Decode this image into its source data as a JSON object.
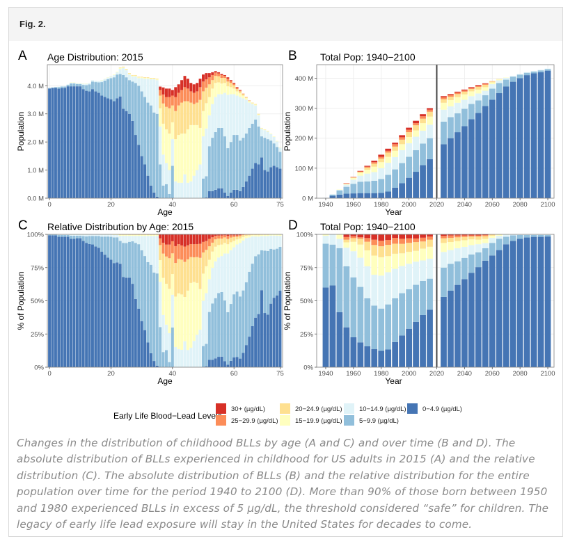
{
  "figure": {
    "label": "Fig. 2.",
    "caption": "Changes in the distribution of childhood BLLs by age (A and C) and over time (B and D). The absolute distribution of BLLs experienced in childhood for US adults in 2015 (A) and the relative distribution (C). The absolute distribution of BLLs (B) and the relative distribution for the entire population over time for the period 1940 to 2100 (D). More than 90% of those born between 1950 and 1980 experienced BLLs in excess of 5 µg/dL, the threshold considered “safe” for children. The legacy of early life lead exposure will stay in the United States for decades to come."
  },
  "legend": {
    "title": "Early Life Blood−Lead Levels",
    "items": [
      {
        "label": "30+ (µg/dL)",
        "color": "#d73027"
      },
      {
        "label": "25−29.9 (µg/dL)",
        "color": "#fc8d59"
      },
      {
        "label": "20−24.9 (µg/dL)",
        "color": "#fee090"
      },
      {
        "label": "15−19.9 (µg/dL)",
        "color": "#ffffbf"
      },
      {
        "label": "10−14.9 (µg/dL)",
        "color": "#e0f3f8"
      },
      {
        "label": "5−9.9 (µg/dL)",
        "color": "#91bfdb"
      },
      {
        "label": "0−4.9 (µg/dL)",
        "color": "#4575b4"
      }
    ]
  },
  "chart_data": [
    {
      "panel": "A",
      "type": "bar",
      "stacked": true,
      "title": "Age Distribution: 2015",
      "xlabel": "Age",
      "ylabel": "Population",
      "xticks": [
        "0",
        "20",
        "40",
        "60",
        "75"
      ],
      "yticks": [
        "0.0 M",
        "1.0 M",
        "2.0 M",
        "3.0 M",
        "4.0 M"
      ],
      "ylim": [
        0,
        4.75
      ],
      "unit": "millions",
      "grid": true,
      "series_order": [
        "0−4.9 (µg/dL)",
        "5−9.9 (µg/dL)",
        "10−14.9 (µg/dL)",
        "15−19.9 (µg/dL)",
        "20−24.9 (µg/dL)",
        "25−29.9 (µg/dL)",
        "30+ (µg/dL)"
      ],
      "x": [
        0,
        1,
        2,
        3,
        4,
        5,
        6,
        7,
        8,
        9,
        10,
        11,
        12,
        13,
        14,
        15,
        16,
        17,
        18,
        19,
        20,
        21,
        22,
        23,
        24,
        25,
        26,
        27,
        28,
        29,
        30,
        31,
        32,
        33,
        34,
        35,
        36,
        37,
        38,
        39,
        40,
        41,
        42,
        43,
        44,
        45,
        46,
        47,
        48,
        49,
        50,
        51,
        52,
        53,
        54,
        55,
        56,
        57,
        58,
        59,
        60,
        61,
        62,
        63,
        64,
        65,
        66,
        67,
        68,
        69,
        70,
        71,
        72,
        73,
        74,
        75
      ],
      "values": [
        [
          3.9,
          0.02,
          0.01,
          0,
          0,
          0,
          0
        ],
        [
          3.92,
          0.02,
          0.01,
          0,
          0,
          0,
          0
        ],
        [
          3.93,
          0.02,
          0.01,
          0,
          0,
          0,
          0
        ],
        [
          3.9,
          0.05,
          0.02,
          0,
          0,
          0,
          0
        ],
        [
          3.92,
          0.05,
          0.02,
          0,
          0,
          0,
          0
        ],
        [
          3.92,
          0.05,
          0.02,
          0,
          0,
          0,
          0
        ],
        [
          3.98,
          0.05,
          0.02,
          0,
          0,
          0,
          0
        ],
        [
          3.98,
          0.1,
          0.03,
          0.01,
          0,
          0,
          0
        ],
        [
          3.98,
          0.1,
          0.03,
          0.01,
          0,
          0,
          0
        ],
        [
          3.98,
          0.08,
          0.03,
          0.01,
          0,
          0,
          0
        ],
        [
          3.98,
          0.08,
          0.03,
          0.01,
          0,
          0,
          0
        ],
        [
          3.88,
          0.15,
          0.04,
          0.01,
          0,
          0,
          0
        ],
        [
          3.82,
          0.2,
          0.05,
          0.01,
          0,
          0,
          0
        ],
        [
          3.8,
          0.25,
          0.05,
          0,
          0,
          0,
          0
        ],
        [
          3.88,
          0.27,
          0.05,
          0,
          0,
          0,
          0
        ],
        [
          3.8,
          0.33,
          0.05,
          0,
          0,
          0,
          0
        ],
        [
          3.75,
          0.37,
          0.05,
          0,
          0,
          0,
          0
        ],
        [
          3.65,
          0.48,
          0.06,
          0.01,
          0,
          0,
          0
        ],
        [
          3.6,
          0.58,
          0.06,
          0.01,
          0,
          0,
          0
        ],
        [
          3.55,
          0.68,
          0.06,
          0.01,
          0,
          0,
          0
        ],
        [
          3.52,
          0.75,
          0.07,
          0.01,
          0,
          0,
          0
        ],
        [
          3.45,
          0.85,
          0.08,
          0.02,
          0,
          0,
          0
        ],
        [
          3.55,
          0.85,
          0.08,
          0.02,
          0,
          0,
          0
        ],
        [
          3.62,
          0.8,
          0.18,
          0.03,
          0.02,
          0,
          0
        ],
        [
          3.18,
          1.2,
          0.25,
          0.03,
          0.02,
          0,
          0
        ],
        [
          3.1,
          1.2,
          0.25,
          0.03,
          0.02,
          0,
          0
        ],
        [
          3.0,
          1.2,
          0.2,
          0.03,
          0.02,
          0,
          0
        ],
        [
          2.75,
          1.4,
          0.18,
          0.03,
          0.02,
          0,
          0
        ],
        [
          2.25,
          1.85,
          0.23,
          0.03,
          0.02,
          0,
          0
        ],
        [
          1.9,
          2.1,
          0.27,
          0.03,
          0.02,
          0,
          0
        ],
        [
          1.5,
          2.3,
          0.47,
          0.03,
          0.02,
          0,
          0
        ],
        [
          1.2,
          2.4,
          0.65,
          0.03,
          0.02,
          0,
          0
        ],
        [
          0.8,
          2.6,
          0.85,
          0.03,
          0.02,
          0,
          0
        ],
        [
          0.45,
          2.85,
          0.93,
          0.03,
          0.02,
          0,
          0
        ],
        [
          0.2,
          2.85,
          1.18,
          0.03,
          0.02,
          0,
          0
        ],
        [
          0.05,
          2.95,
          1.2,
          0.03,
          0.02,
          0,
          0
        ],
        [
          0,
          1.2,
          1.35,
          0.65,
          0.45,
          0.2,
          0.12
        ],
        [
          0,
          0.45,
          1.1,
          1.1,
          0.72,
          0.32,
          0.25
        ],
        [
          0,
          0.5,
          0.75,
          1.2,
          0.8,
          0.35,
          0.3
        ],
        [
          0,
          0.15,
          0.85,
          1.3,
          0.9,
          0.4,
          0.3
        ],
        [
          0,
          1.15,
          0.95,
          0.6,
          0.6,
          0.35,
          0.2
        ],
        [
          0,
          0,
          0.6,
          1.5,
          1.0,
          0.5,
          0.35
        ],
        [
          0,
          0,
          0.55,
          1.7,
          1.05,
          0.45,
          0.3
        ],
        [
          0,
          0,
          0.55,
          1.75,
          1.1,
          0.45,
          0.35
        ],
        [
          0,
          0,
          0.85,
          1.45,
          1.15,
          0.5,
          0.4
        ],
        [
          0,
          0,
          0.55,
          1.9,
          1.0,
          0.45,
          0.35
        ],
        [
          0,
          0,
          0.6,
          2.0,
          0.8,
          0.4,
          0.3
        ],
        [
          0,
          0,
          0.8,
          1.8,
          0.75,
          0.4,
          0.3
        ],
        [
          0,
          0,
          1.0,
          1.6,
          0.8,
          0.4,
          0.3
        ],
        [
          0,
          0,
          1.2,
          1.3,
          1.0,
          0.45,
          0.3
        ],
        [
          0,
          0.7,
          1.5,
          0.9,
          0.7,
          0.35,
          0.25
        ],
        [
          0.03,
          0.75,
          1.7,
          0.9,
          0.55,
          0.3,
          0.22
        ],
        [
          0.25,
          1.6,
          1.1,
          0.65,
          0.45,
          0.25,
          0.15
        ],
        [
          0.25,
          1.9,
          1.2,
          0.55,
          0.3,
          0.18,
          0.1
        ],
        [
          0.3,
          2.05,
          1.25,
          0.5,
          0.25,
          0.12,
          0.05
        ],
        [
          0.35,
          2.15,
          1.2,
          0.42,
          0.22,
          0.1,
          0.04
        ],
        [
          0.35,
          2.15,
          1.2,
          0.38,
          0.2,
          0.1,
          0.04
        ],
        [
          0.2,
          2.0,
          1.55,
          0.35,
          0.18,
          0.07,
          0.03
        ],
        [
          0.08,
          1.7,
          1.9,
          0.3,
          0.17,
          0.1,
          0.05
        ],
        [
          0.2,
          1.8,
          1.7,
          0.25,
          0.15,
          0.07,
          0.03
        ],
        [
          0.3,
          1.95,
          1.45,
          0.2,
          0.12,
          0.05,
          0.03
        ],
        [
          0.3,
          1.95,
          1.4,
          0.15,
          0.08,
          0.04,
          0.03
        ],
        [
          0.25,
          1.8,
          1.55,
          0.13,
          0.07,
          0.03,
          0.02
        ],
        [
          0.4,
          1.75,
          1.4,
          0.1,
          0.05,
          0.02,
          0
        ],
        [
          0.6,
          1.7,
          1.2,
          0.06,
          0.03,
          0.01,
          0
        ],
        [
          0.8,
          1.7,
          0.9,
          0.05,
          0.02,
          0.01,
          0
        ],
        [
          1.05,
          1.6,
          0.7,
          0.03,
          0.02,
          0,
          0
        ],
        [
          1.25,
          1.55,
          0.5,
          0.03,
          0.02,
          0,
          0
        ],
        [
          1.2,
          1.35,
          0.4,
          0.03,
          0.02,
          0,
          0
        ],
        [
          1.45,
          0.75,
          0.27,
          0.02,
          0.01,
          0,
          0
        ],
        [
          1.0,
          1.15,
          0.27,
          0.02,
          0.01,
          0,
          0
        ],
        [
          0.95,
          1.15,
          0.27,
          0.02,
          0.01,
          0,
          0
        ],
        [
          1.1,
          0.95,
          0.23,
          0.02,
          0,
          0,
          0
        ],
        [
          1.15,
          0.8,
          0.23,
          0.02,
          0,
          0,
          0
        ],
        [
          1.1,
          0.72,
          0.2,
          0.02,
          0,
          0,
          0
        ],
        [
          1.05,
          0.6,
          0.15,
          0.02,
          0,
          0,
          0
        ]
      ]
    },
    {
      "panel": "B",
      "type": "bar",
      "stacked": true,
      "title": "Total Pop: 1940−2100",
      "xlabel": "Year",
      "ylabel": "Population",
      "xticks": [
        "1940",
        "1960",
        "1980",
        "2000",
        "2020",
        "2040",
        "2060",
        "2080",
        "2100"
      ],
      "yticks": [
        "0 M",
        "100 M",
        "200 M",
        "300 M",
        "400 M"
      ],
      "ylim": [
        0,
        445
      ],
      "unit": "millions",
      "divider_year": 2020,
      "grid": true,
      "x": [
        1940,
        1945,
        1950,
        1955,
        1960,
        1965,
        1970,
        1975,
        1980,
        1985,
        1990,
        1995,
        2000,
        2005,
        2010,
        2015,
        2025,
        2030,
        2035,
        2040,
        2045,
        2050,
        2055,
        2060,
        2065,
        2070,
        2075,
        2080,
        2085,
        2090,
        2095,
        2100
      ],
      "values": [
        [
          0.6,
          0.33,
          0.06,
          0.01,
          0,
          0,
          0
        ],
        [
          8,
          4,
          1,
          0,
          0,
          0,
          0
        ],
        [
          12,
          14,
          2,
          1,
          0,
          0,
          0
        ],
        [
          15,
          23,
          7,
          2,
          1,
          1,
          1
        ],
        [
          16,
          32,
          14,
          5,
          2,
          1,
          1
        ],
        [
          17,
          38,
          20,
          9,
          4,
          1,
          2
        ],
        [
          17,
          39,
          26,
          13,
          7,
          3,
          3
        ],
        [
          17,
          41,
          29,
          18,
          10,
          5,
          5
        ],
        [
          18,
          46,
          36,
          20,
          12,
          6,
          7
        ],
        [
          22,
          56,
          40,
          20,
          14,
          6,
          7
        ],
        [
          35,
          61,
          41,
          21,
          14,
          8,
          5
        ],
        [
          50,
          67,
          43,
          20,
          15,
          8,
          7
        ],
        [
          68,
          70,
          45,
          21,
          16,
          8,
          7
        ],
        [
          88,
          72,
          45,
          21,
          17,
          7,
          8
        ],
        [
          110,
          72,
          43,
          25,
          15,
          8,
          7
        ],
        [
          130,
          70,
          45,
          27,
          16,
          7,
          5
        ],
        [
          180,
          75,
          40,
          23,
          12,
          6,
          4
        ],
        [
          200,
          70,
          36,
          21,
          11,
          6,
          3
        ],
        [
          220,
          63,
          35,
          19,
          10,
          5,
          3
        ],
        [
          240,
          58,
          30,
          18,
          9,
          4,
          3
        ],
        [
          263,
          51,
          26,
          16,
          8,
          3,
          3
        ],
        [
          284,
          42,
          23,
          13,
          9,
          3,
          3
        ],
        [
          307,
          36,
          15,
          12,
          8,
          3,
          2
        ],
        [
          328,
          37,
          15,
          6,
          3,
          1,
          0
        ],
        [
          350,
          34,
          9,
          3,
          1,
          0,
          0
        ],
        [
          372,
          23,
          6,
          1,
          0,
          0,
          0
        ],
        [
          388,
          17,
          3,
          0,
          0,
          0,
          0
        ],
        [
          400,
          12,
          2,
          0,
          0,
          0,
          0
        ],
        [
          410,
          8,
          2,
          0,
          0,
          0,
          0
        ],
        [
          416,
          6,
          2,
          0,
          0,
          0,
          0
        ],
        [
          420,
          6,
          2,
          0,
          0,
          0,
          0
        ],
        [
          425,
          5,
          2,
          0,
          0,
          0,
          0
        ]
      ]
    },
    {
      "panel": "C",
      "type": "bar",
      "stacked": true,
      "normalized_from_panel": "A",
      "title": "Relative Distribution by Age: 2015",
      "xlabel": "Age",
      "ylabel": "% of Population",
      "xticks": [
        "0",
        "20",
        "40",
        "60",
        "75"
      ],
      "yticks": [
        "0%",
        "25%",
        "50%",
        "75%",
        "100%"
      ],
      "ylim": [
        0,
        100
      ],
      "grid": true
    },
    {
      "panel": "D",
      "type": "bar",
      "stacked": true,
      "normalized_from_panel": "B",
      "title": "Total Pop: 1940−2100",
      "xlabel": "Year",
      "ylabel": "% of Population",
      "xticks": [
        "1940",
        "1960",
        "1980",
        "2000",
        "2020",
        "2040",
        "2060",
        "2080",
        "2100"
      ],
      "yticks": [
        "0%",
        "25%",
        "50%",
        "75%",
        "100%"
      ],
      "ylim": [
        0,
        100
      ],
      "divider_year": 2020,
      "grid": true
    }
  ]
}
